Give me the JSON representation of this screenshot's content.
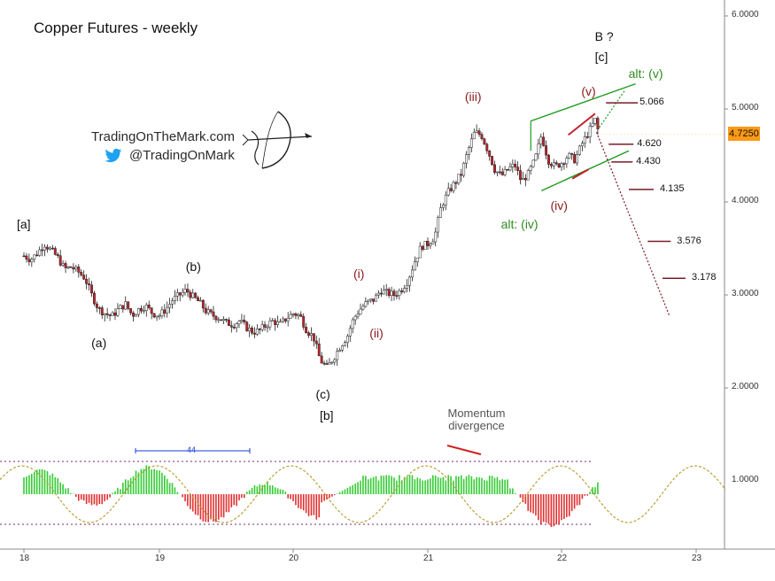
{
  "title": "Copper Futures - weekly",
  "branding": {
    "site": "TradingOnTheMark.com",
    "twitter": "@TradingOnMark"
  },
  "current_price": "4.7250",
  "colors": {
    "up_candle": "#ffffff",
    "down_candle": "#c0242c",
    "wick": "#222222",
    "channel": "#1f9a1f",
    "projection": "#7a1a2a",
    "osc_positive": "#33cc33",
    "osc_negative": "#e03030",
    "cycle": "#b59a2a",
    "current_tag": "#ff9a14"
  },
  "chart_data": [
    {
      "type": "candlestick",
      "title": "Copper Futures - weekly",
      "y_axis": {
        "ticks": [
          "6.0000",
          "5.0000",
          "4.0000",
          "3.0000",
          "2.0000"
        ],
        "ylim": [
          1.6,
          6.1
        ]
      },
      "x_axis": {
        "ticks": [
          "18",
          "19",
          "20",
          "21",
          "22",
          "23"
        ],
        "xlim": [
          2018.0,
          2023.25
        ]
      },
      "price_path": [
        [
          2018.0,
          3.42
        ],
        [
          2018.05,
          3.38
        ],
        [
          2018.1,
          3.45
        ],
        [
          2018.15,
          3.55
        ],
        [
          2018.2,
          3.48
        ],
        [
          2018.25,
          3.4
        ],
        [
          2018.3,
          3.28
        ],
        [
          2018.35,
          3.3
        ],
        [
          2018.4,
          3.25
        ],
        [
          2018.45,
          3.18
        ],
        [
          2018.5,
          3.0
        ],
        [
          2018.55,
          2.85
        ],
        [
          2018.6,
          2.8
        ],
        [
          2018.65,
          2.77
        ],
        [
          2018.7,
          2.85
        ],
        [
          2018.75,
          2.9
        ],
        [
          2018.8,
          2.78
        ],
        [
          2018.85,
          2.85
        ],
        [
          2018.9,
          2.88
        ],
        [
          2018.95,
          2.8
        ],
        [
          2019.0,
          2.78
        ],
        [
          2019.05,
          2.85
        ],
        [
          2019.1,
          2.95
        ],
        [
          2019.15,
          3.0
        ],
        [
          2019.2,
          3.05
        ],
        [
          2019.25,
          2.98
        ],
        [
          2019.3,
          2.92
        ],
        [
          2019.35,
          2.82
        ],
        [
          2019.4,
          2.78
        ],
        [
          2019.45,
          2.75
        ],
        [
          2019.5,
          2.7
        ],
        [
          2019.55,
          2.68
        ],
        [
          2019.6,
          2.72
        ],
        [
          2019.65,
          2.65
        ],
        [
          2019.7,
          2.6
        ],
        [
          2019.75,
          2.62
        ],
        [
          2019.8,
          2.68
        ],
        [
          2019.85,
          2.72
        ],
        [
          2019.9,
          2.68
        ],
        [
          2019.95,
          2.75
        ],
        [
          2020.0,
          2.8
        ],
        [
          2020.05,
          2.78
        ],
        [
          2020.1,
          2.62
        ],
        [
          2020.15,
          2.55
        ],
        [
          2020.2,
          2.3
        ],
        [
          2020.25,
          2.22
        ],
        [
          2020.3,
          2.32
        ],
        [
          2020.35,
          2.45
        ],
        [
          2020.4,
          2.55
        ],
        [
          2020.45,
          2.75
        ],
        [
          2020.5,
          2.85
        ],
        [
          2020.55,
          2.92
        ],
        [
          2020.6,
          2.95
        ],
        [
          2020.65,
          3.05
        ],
        [
          2020.7,
          3.02
        ],
        [
          2020.75,
          3.0
        ],
        [
          2020.8,
          3.05
        ],
        [
          2020.85,
          3.15
        ],
        [
          2020.9,
          3.35
        ],
        [
          2020.95,
          3.52
        ],
        [
          2021.0,
          3.55
        ],
        [
          2021.05,
          3.62
        ],
        [
          2021.1,
          3.95
        ],
        [
          2021.15,
          4.1
        ],
        [
          2021.2,
          4.2
        ],
        [
          2021.25,
          4.3
        ],
        [
          2021.3,
          4.55
        ],
        [
          2021.35,
          4.75
        ],
        [
          2021.4,
          4.72
        ],
        [
          2021.45,
          4.55
        ],
        [
          2021.5,
          4.35
        ],
        [
          2021.55,
          4.28
        ],
        [
          2021.6,
          4.35
        ],
        [
          2021.65,
          4.4
        ],
        [
          2021.7,
          4.22
        ],
        [
          2021.75,
          4.3
        ],
        [
          2021.8,
          4.45
        ],
        [
          2021.85,
          4.72
        ],
        [
          2021.9,
          4.45
        ],
        [
          2021.95,
          4.38
        ],
        [
          2022.0,
          4.42
        ],
        [
          2022.05,
          4.5
        ],
        [
          2022.1,
          4.45
        ],
        [
          2022.15,
          4.62
        ],
        [
          2022.2,
          4.75
        ],
        [
          2022.25,
          4.88
        ],
        [
          2022.28,
          4.72
        ]
      ],
      "price_levels": [
        "5.066",
        "4.620",
        "4.430",
        "4.135",
        "3.576",
        "3.178"
      ],
      "wave_labels": [
        {
          "text": "[a]",
          "x": 2018.0,
          "y": 3.75
        },
        {
          "text": "(a)",
          "x": 2018.55,
          "y": 2.48
        },
        {
          "text": "(b)",
          "x": 2019.25,
          "y": 3.3
        },
        {
          "text": "(c)",
          "x": 2020.22,
          "y": 1.92
        },
        {
          "text": "[b]",
          "x": 2020.25,
          "y": 1.7
        },
        {
          "text": "(i)",
          "x": 2020.5,
          "y": 3.22
        },
        {
          "text": "(ii)",
          "x": 2020.62,
          "y": 2.58
        },
        {
          "text": "(iii)",
          "x": 2021.33,
          "y": 5.12
        },
        {
          "text": "(iv)",
          "x": 2021.97,
          "y": 3.95
        },
        {
          "text": "(v)",
          "x": 2022.2,
          "y": 5.18
        },
        {
          "text": "alt: (iv)",
          "x": 2021.6,
          "y": 3.75
        },
        {
          "text": "alt: (v)",
          "x": 2022.55,
          "y": 5.37
        },
        {
          "text": "[c]",
          "x": 2022.3,
          "y": 5.55
        },
        {
          "text": "B ?",
          "x": 2022.3,
          "y": 5.77
        }
      ]
    },
    {
      "type": "bar",
      "title": "",
      "annotation": "Momentum divergence",
      "cycle_length_label": "44",
      "y_axis": {
        "ticks": [
          "1.0000"
        ]
      }
    }
  ]
}
